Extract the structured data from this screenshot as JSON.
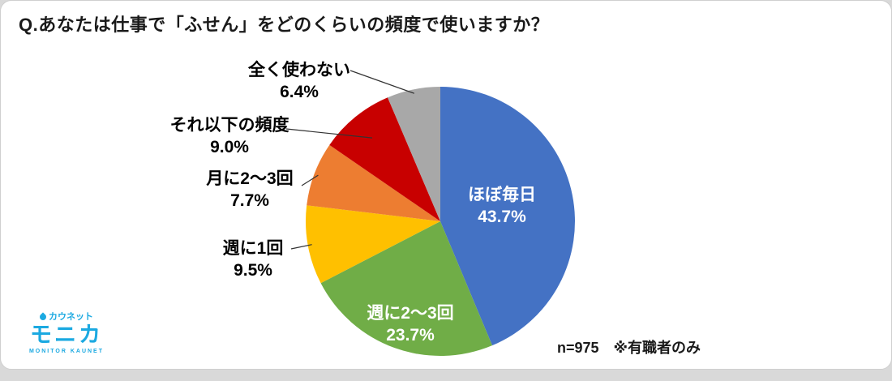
{
  "page": {
    "title": "Q.あなたは仕事で「ふせん」をどのくらいの頻度で使いますか？"
  },
  "logo": {
    "top": "カウネット",
    "main": "モニカ",
    "sub": "MONITOR KAUNET",
    "color": "#1ba9e1"
  },
  "chart_data": {
    "type": "pie",
    "title": "Q.あなたは仕事で「ふせん」をどのくらいの頻度で使いますか？",
    "start_angle_deg": 0,
    "direction": "clockwise",
    "legend": "none",
    "sample_note": "n=975　※有職者のみ",
    "slices": [
      {
        "label": "ほぼ毎日",
        "value": 43.7,
        "display": "43.7%",
        "color": "#4472C4",
        "label_placement": "inside",
        "text_color": "#FFFFFF"
      },
      {
        "label": "週に2〜3回",
        "value": 23.7,
        "display": "23.7%",
        "color": "#70AD47",
        "label_placement": "inside",
        "text_color": "#FFFFFF"
      },
      {
        "label": "週に1回",
        "value": 9.5,
        "display": "9.5%",
        "color": "#FFC000",
        "label_placement": "outside",
        "text_color": "#000000"
      },
      {
        "label": "月に2〜3回",
        "value": 7.7,
        "display": "7.7%",
        "color": "#ED7D31",
        "label_placement": "outside",
        "text_color": "#000000"
      },
      {
        "label": "それ以下の頻度",
        "value": 9.0,
        "display": "9.0%",
        "color": "#C80000",
        "label_placement": "outside",
        "text_color": "#000000"
      },
      {
        "label": "全く使わない",
        "value": 6.4,
        "display": "6.4%",
        "color": "#A8A8A8",
        "label_placement": "outside",
        "text_color": "#000000"
      }
    ]
  }
}
